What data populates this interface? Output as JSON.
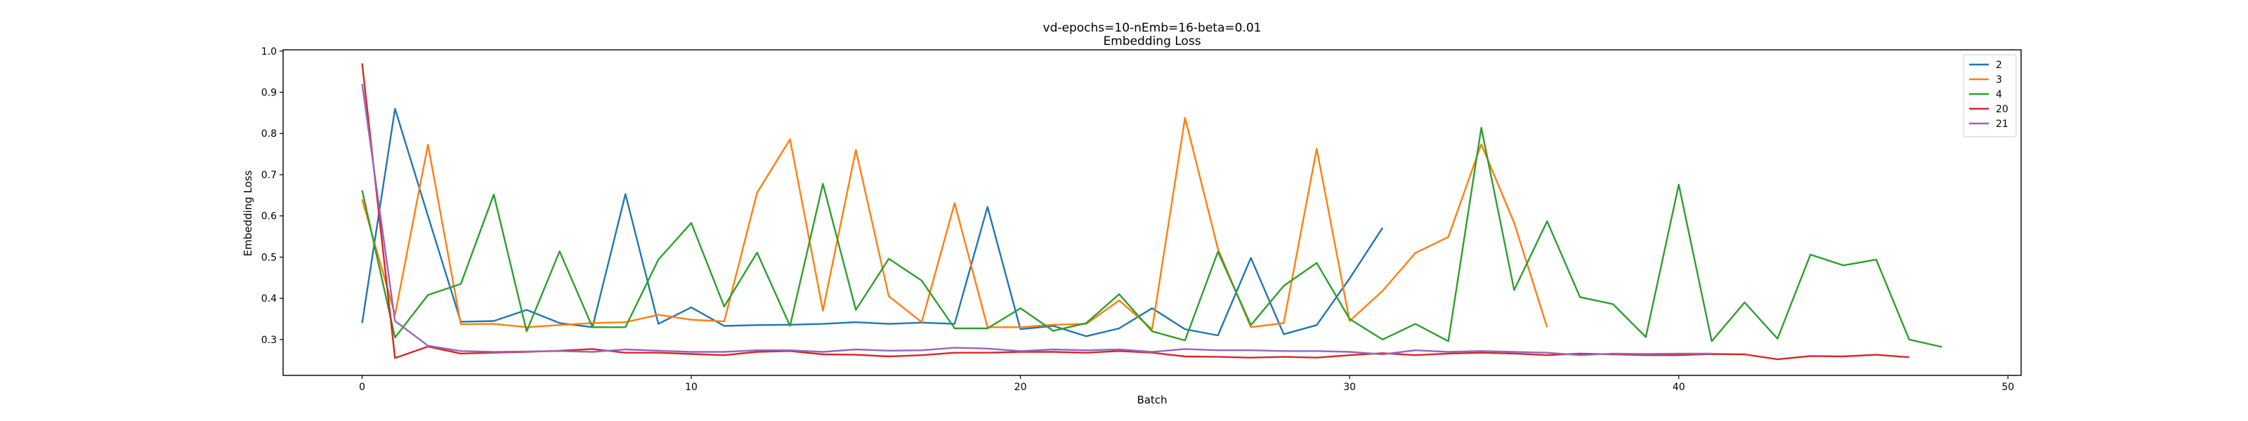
{
  "chart_data": {
    "type": "line",
    "title": "vd-epochs=10-nEmb=16-beta=0.01",
    "subtitle": "Embedding Loss",
    "xlabel": "Batch",
    "ylabel": "Embedding Loss",
    "xlim": [
      -2.4,
      50.4
    ],
    "ylim": [
      0.213,
      1.003
    ],
    "xticks": [
      0,
      10,
      20,
      30,
      40,
      50
    ],
    "yticks": [
      0.3,
      0.4,
      0.5,
      0.6,
      0.7,
      0.8,
      0.9,
      1.0
    ],
    "xtick_labels": [
      "0",
      "10",
      "20",
      "30",
      "40",
      "50"
    ],
    "ytick_labels": [
      "0.3",
      "0.4",
      "0.5",
      "0.6",
      "0.7",
      "0.8",
      "0.9",
      "1.0"
    ],
    "grid": false,
    "legend_position": "top-right",
    "series": [
      {
        "name": "2",
        "color": "#1f77b4",
        "values": [
          0.34,
          0.86,
          0.6,
          0.343,
          0.345,
          0.372,
          0.34,
          0.33,
          0.653,
          0.338,
          0.378,
          0.333,
          0.335,
          0.336,
          0.338,
          0.342,
          0.338,
          0.341,
          0.338,
          0.622,
          0.325,
          0.333,
          0.308,
          0.327,
          0.376,
          0.325,
          0.31,
          0.498,
          0.313,
          0.335,
          0.448,
          0.571
        ]
      },
      {
        "name": "3",
        "color": "#ff7f0e",
        "values": [
          0.64,
          0.36,
          0.773,
          0.337,
          0.338,
          0.33,
          0.335,
          0.34,
          0.342,
          0.36,
          0.348,
          0.344,
          0.656,
          0.786,
          0.37,
          0.76,
          0.405,
          0.342,
          0.631,
          0.33,
          0.33,
          0.336,
          0.338,
          0.395,
          0.325,
          0.838,
          0.52,
          0.33,
          0.34,
          0.763,
          0.345,
          0.418,
          0.51,
          0.549,
          0.774,
          0.583,
          0.33
        ]
      },
      {
        "name": "4",
        "color": "#2ca02c",
        "values": [
          0.662,
          0.305,
          0.408,
          0.435,
          0.652,
          0.32,
          0.514,
          0.33,
          0.33,
          0.494,
          0.583,
          0.38,
          0.511,
          0.333,
          0.678,
          0.372,
          0.496,
          0.443,
          0.327,
          0.327,
          0.376,
          0.321,
          0.34,
          0.41,
          0.32,
          0.298,
          0.513,
          0.335,
          0.43,
          0.486,
          0.35,
          0.3,
          0.338,
          0.296,
          0.814,
          0.42,
          0.587,
          0.403,
          0.386,
          0.306,
          0.676,
          0.296,
          0.39,
          0.302,
          0.506,
          0.48,
          0.494,
          0.3,
          0.282
        ]
      },
      {
        "name": "20",
        "color": "#d62728",
        "values": [
          0.97,
          0.255,
          0.283,
          0.266,
          0.268,
          0.27,
          0.273,
          0.277,
          0.268,
          0.268,
          0.265,
          0.262,
          0.27,
          0.272,
          0.264,
          0.263,
          0.259,
          0.262,
          0.268,
          0.268,
          0.27,
          0.27,
          0.268,
          0.272,
          0.268,
          0.259,
          0.258,
          0.256,
          0.258,
          0.256,
          0.262,
          0.267,
          0.262,
          0.266,
          0.268,
          0.266,
          0.262,
          0.266,
          0.264,
          0.262,
          0.262,
          0.265,
          0.264,
          0.252,
          0.26,
          0.259,
          0.263,
          0.257
        ]
      },
      {
        "name": "21",
        "color": "#9467bd",
        "values": [
          0.92,
          0.345,
          0.285,
          0.272,
          0.27,
          0.271,
          0.272,
          0.27,
          0.276,
          0.273,
          0.27,
          0.27,
          0.274,
          0.274,
          0.27,
          0.276,
          0.273,
          0.274,
          0.28,
          0.278,
          0.272,
          0.276,
          0.274,
          0.276,
          0.27,
          0.277,
          0.274,
          0.274,
          0.272,
          0.272,
          0.27,
          0.264,
          0.274,
          0.27,
          0.272,
          0.27,
          0.268,
          0.262,
          0.266,
          0.265,
          0.266,
          0.266
        ]
      }
    ]
  }
}
